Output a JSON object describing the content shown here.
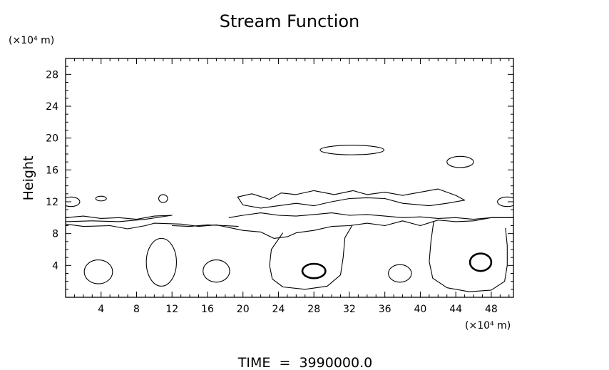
{
  "chart_data": {
    "type": "contour",
    "title": "Stream Function",
    "xlabel": "",
    "ylabel": "Height",
    "x_unit_label": "(×10⁴ m)",
    "y_unit_label": "(×10⁴ m)",
    "xlim": [
      0,
      50.5
    ],
    "ylim": [
      0,
      30
    ],
    "x_ticks": [
      4,
      8,
      12,
      16,
      20,
      24,
      28,
      32,
      36,
      40,
      44,
      48
    ],
    "y_ticks": [
      4,
      8,
      12,
      16,
      20,
      24,
      28
    ],
    "footer": "TIME  =  3990000.0",
    "grid": false,
    "line_color": "#000000",
    "contours": [
      {
        "kind": "vortex",
        "cx": 3.7,
        "cy": 3.2,
        "rx": 1.6,
        "ry": 1.5,
        "strong": false
      },
      {
        "kind": "vortex",
        "cx": 10.8,
        "cy": 4.4,
        "rx": 1.7,
        "ry": 3.0,
        "strong": false
      },
      {
        "kind": "vortex",
        "cx": 17.0,
        "cy": 3.3,
        "rx": 1.5,
        "ry": 1.4,
        "strong": false
      },
      {
        "kind": "vortex",
        "cx": 28.0,
        "cy": 3.3,
        "rx": 1.3,
        "ry": 0.9,
        "strong": true
      },
      {
        "kind": "vortex",
        "cx": 37.7,
        "cy": 3.0,
        "rx": 1.3,
        "ry": 1.1,
        "strong": false
      },
      {
        "kind": "vortex",
        "cx": 46.8,
        "cy": 4.4,
        "rx": 1.2,
        "ry": 1.1,
        "strong": true
      },
      {
        "kind": "blob",
        "cx": 32.3,
        "cy": 18.5,
        "rx": 3.6,
        "ry": 0.6
      },
      {
        "kind": "blob",
        "cx": 44.5,
        "cy": 17.0,
        "rx": 1.5,
        "ry": 0.7
      },
      {
        "kind": "blob",
        "cx": 4.0,
        "cy": 12.4,
        "rx": 0.6,
        "ry": 0.3
      },
      {
        "kind": "blob",
        "cx": 11.0,
        "cy": 12.4,
        "rx": 0.5,
        "ry": 0.5
      },
      {
        "kind": "blob",
        "cx": 0.6,
        "cy": 12.0,
        "rx": 1.0,
        "ry": 0.6
      },
      {
        "kind": "blob",
        "cx": 49.8,
        "cy": 12.0,
        "rx": 1.1,
        "ry": 0.6
      },
      {
        "kind": "path",
        "points": [
          [
            19.4,
            12.6
          ],
          [
            21.0,
            13.0
          ],
          [
            23.0,
            12.3
          ],
          [
            24.3,
            13.1
          ],
          [
            26.0,
            12.9
          ],
          [
            28.0,
            13.4
          ],
          [
            30.3,
            12.9
          ],
          [
            32.4,
            13.4
          ],
          [
            34.0,
            12.9
          ],
          [
            36.0,
            13.2
          ],
          [
            38.0,
            12.8
          ],
          [
            40.0,
            13.2
          ],
          [
            42.0,
            13.6
          ],
          [
            44.0,
            12.8
          ],
          [
            45.0,
            12.2
          ],
          [
            43.0,
            11.8
          ],
          [
            41.0,
            11.5
          ],
          [
            38.0,
            11.8
          ],
          [
            36.0,
            12.4
          ],
          [
            34.0,
            12.5
          ],
          [
            32.0,
            12.4
          ],
          [
            30.0,
            12.0
          ],
          [
            28.0,
            11.5
          ],
          [
            26.0,
            11.8
          ],
          [
            24.0,
            11.5
          ],
          [
            22.0,
            11.2
          ],
          [
            20.0,
            11.6
          ],
          [
            19.4,
            12.6
          ]
        ],
        "closed": true
      },
      {
        "kind": "path",
        "points": [
          [
            0,
            10.0
          ],
          [
            2.0,
            10.2
          ],
          [
            4.0,
            9.9
          ],
          [
            6.0,
            10.0
          ],
          [
            8.0,
            9.8
          ],
          [
            10.0,
            10.2
          ],
          [
            12.0,
            10.3
          ],
          [
            9.0,
            9.8
          ],
          [
            6.0,
            9.5
          ],
          [
            3.0,
            9.6
          ],
          [
            0,
            9.5
          ]
        ],
        "closed": false
      },
      {
        "kind": "path",
        "points": [
          [
            0,
            9.2
          ],
          [
            2.0,
            8.9
          ],
          [
            5.0,
            9.0
          ],
          [
            7.0,
            8.6
          ],
          [
            9.0,
            9.0
          ],
          [
            10.0,
            9.3
          ],
          [
            13.0,
            9.2
          ],
          [
            15.0,
            8.9
          ],
          [
            17.0,
            9.1
          ],
          [
            20.0,
            8.4
          ],
          [
            22.0,
            8.2
          ],
          [
            23.5,
            7.4
          ],
          [
            25.0,
            7.6
          ],
          [
            26.0,
            8.1
          ],
          [
            28.0,
            8.4
          ],
          [
            30.0,
            8.9
          ],
          [
            32.0,
            9.0
          ],
          [
            34.0,
            9.3
          ],
          [
            36.0,
            9.0
          ],
          [
            38.0,
            9.6
          ],
          [
            40.0,
            9.0
          ],
          [
            42.0,
            9.7
          ],
          [
            44.0,
            9.5
          ],
          [
            46.0,
            9.6
          ],
          [
            48.0,
            10.0
          ],
          [
            50.5,
            10.0
          ]
        ],
        "closed": false
      },
      {
        "kind": "path",
        "points": [
          [
            18.4,
            10.0
          ],
          [
            20.0,
            10.3
          ],
          [
            22.0,
            10.6
          ],
          [
            24.0,
            10.3
          ],
          [
            26.0,
            10.2
          ],
          [
            28.0,
            10.4
          ],
          [
            30.0,
            10.6
          ],
          [
            32.0,
            10.3
          ],
          [
            34.0,
            10.4
          ],
          [
            36.0,
            10.2
          ],
          [
            38.0,
            10.0
          ],
          [
            40.0,
            10.1
          ],
          [
            42.0,
            9.9
          ],
          [
            44.0,
            10.0
          ],
          [
            46.0,
            9.8
          ],
          [
            48.0,
            10.0
          ],
          [
            50.5,
            10.0
          ]
        ],
        "closed": false
      },
      {
        "kind": "path",
        "points": [
          [
            24.5,
            8.1
          ],
          [
            23.2,
            6.0
          ],
          [
            23.0,
            4.0
          ],
          [
            23.3,
            2.3
          ],
          [
            24.5,
            1.3
          ],
          [
            27.0,
            1.0
          ],
          [
            29.5,
            1.4
          ],
          [
            31.0,
            2.8
          ],
          [
            31.3,
            5.0
          ],
          [
            31.5,
            7.5
          ],
          [
            32.3,
            9.0
          ]
        ],
        "closed": false
      },
      {
        "kind": "path",
        "points": [
          [
            41.5,
            9.5
          ],
          [
            41.2,
            7.0
          ],
          [
            41.0,
            4.5
          ],
          [
            41.4,
            2.4
          ],
          [
            43.0,
            1.2
          ],
          [
            45.5,
            0.7
          ],
          [
            48.0,
            0.9
          ],
          [
            49.5,
            2.0
          ],
          [
            49.8,
            4.0
          ],
          [
            49.8,
            6.5
          ],
          [
            49.6,
            8.7
          ]
        ],
        "closed": false
      },
      {
        "kind": "path",
        "points": [
          [
            12.0,
            9.0
          ],
          [
            14.0,
            8.9
          ],
          [
            16.0,
            9.1
          ],
          [
            18.0,
            9.0
          ],
          [
            19.5,
            8.9
          ]
        ],
        "closed": false
      }
    ]
  }
}
